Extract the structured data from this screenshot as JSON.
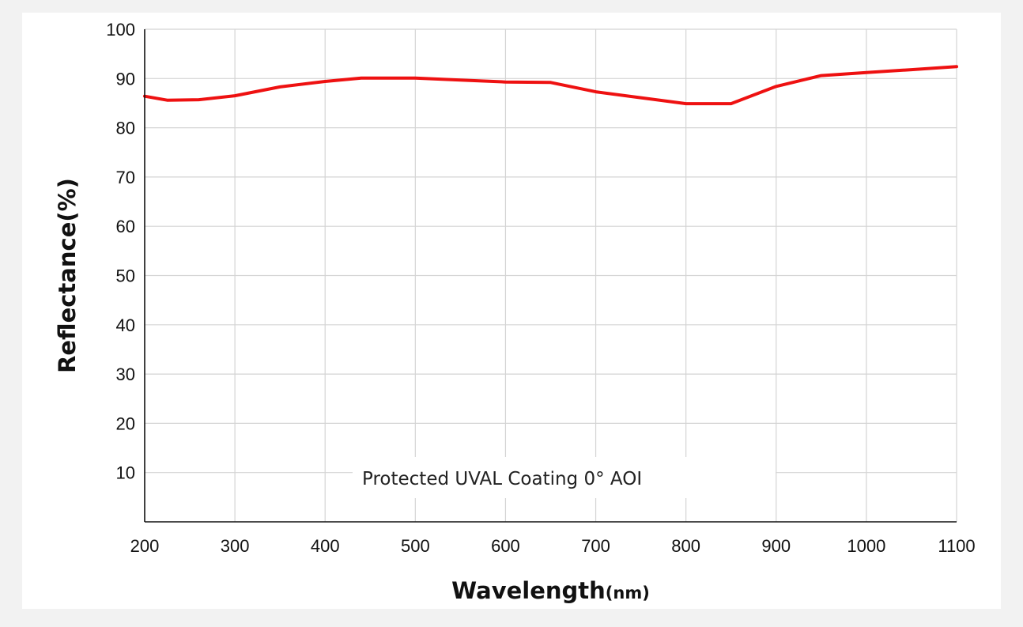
{
  "chart_data": {
    "type": "line",
    "xlabel_main": "Wavelength",
    "xlabel_unit": "(nm)",
    "ylabel": "Reflectance(%)",
    "annotation": "Protected UVAL Coating  0°  AOI",
    "xlim": [
      200,
      1100
    ],
    "ylim": [
      0,
      100
    ],
    "x_ticks": [
      200,
      300,
      400,
      500,
      600,
      700,
      800,
      900,
      1000,
      1100
    ],
    "y_ticks": [
      10,
      20,
      30,
      40,
      50,
      60,
      70,
      80,
      90,
      100
    ],
    "grid": true,
    "line_color": "#ee1111",
    "series": [
      {
        "x": [
          200,
          225,
          260,
          300,
          350,
          400,
          440,
          500,
          550,
          600,
          650,
          700,
          750,
          800,
          850,
          900,
          950,
          1000,
          1050,
          1100
        ],
        "y": [
          86.4,
          85.6,
          85.7,
          86.5,
          88.3,
          89.4,
          90.1,
          90.1,
          89.7,
          89.3,
          89.2,
          87.3,
          86.1,
          84.9,
          84.9,
          88.4,
          90.6,
          91.2,
          91.8,
          92.4
        ]
      }
    ]
  }
}
